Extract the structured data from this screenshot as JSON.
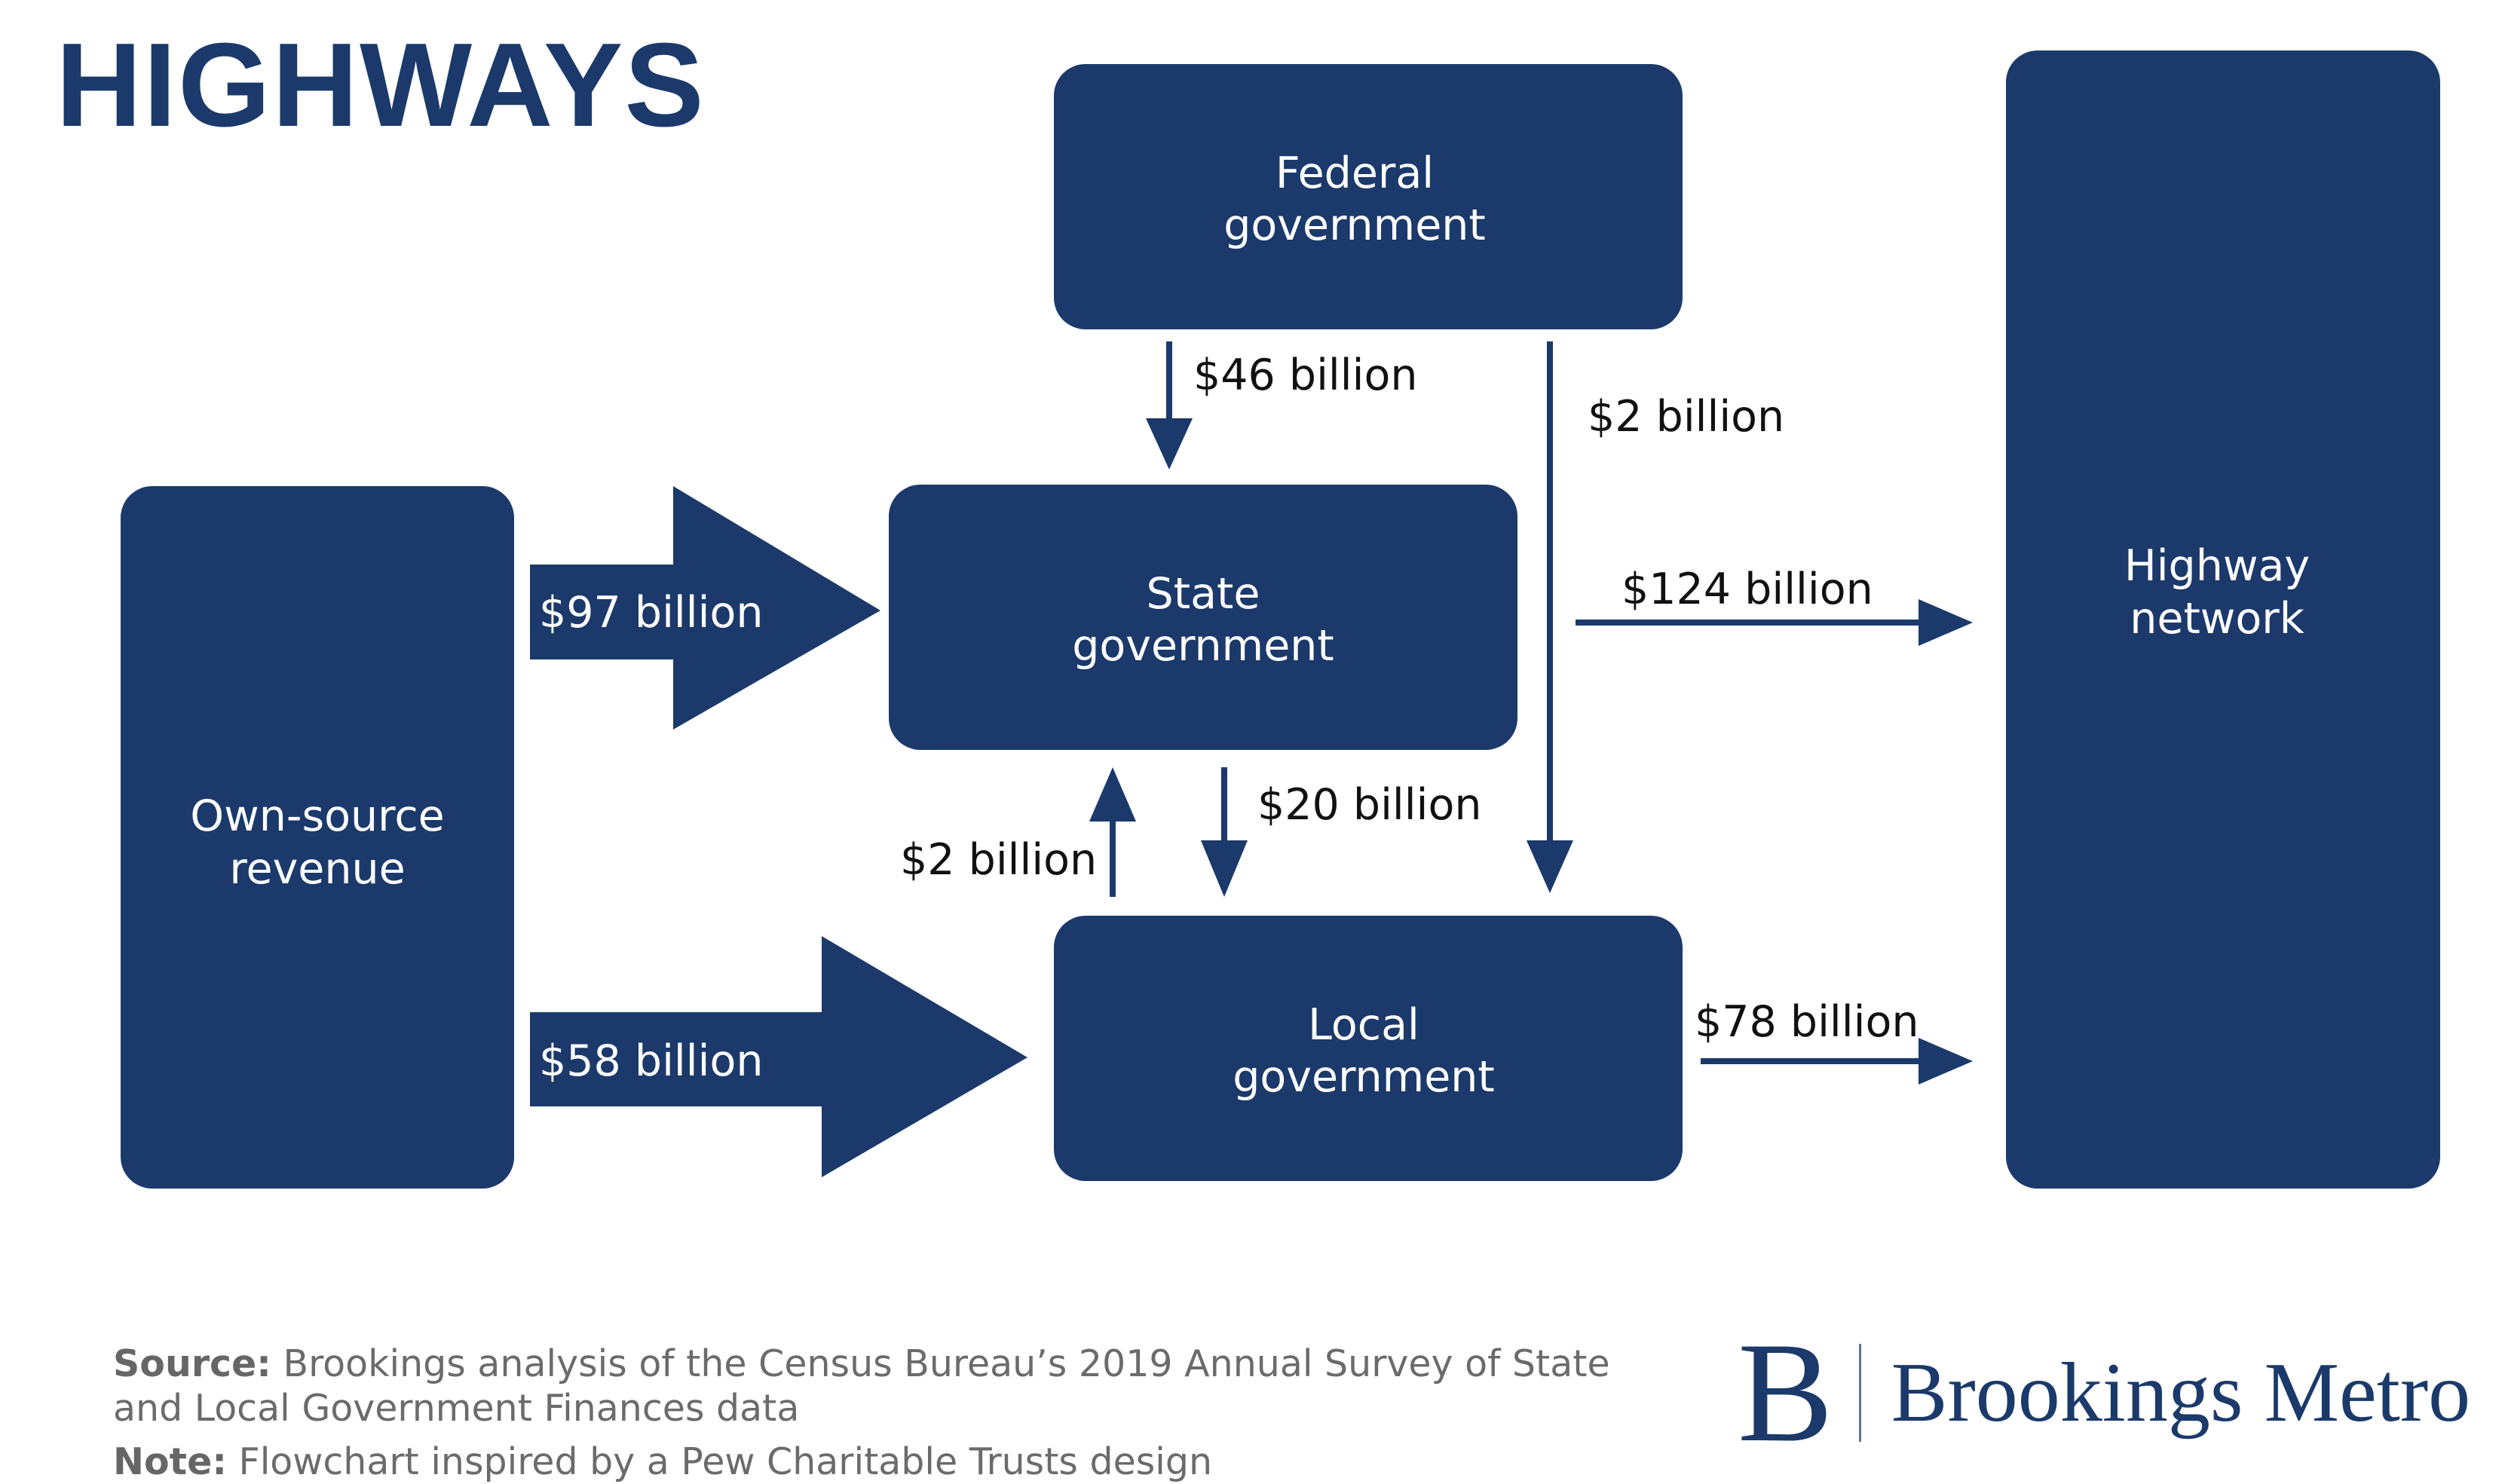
{
  "title": "HIGHWAYS",
  "colors": {
    "navy": "#1b3a6b",
    "label_dark": "#111111",
    "footnote_gray": "#6b6b6b"
  },
  "nodes": {
    "own_source": {
      "line1": "Own-source",
      "line2": "revenue"
    },
    "federal": {
      "line1": "Federal",
      "line2": "government"
    },
    "state": {
      "line1": "State",
      "line2": "government"
    },
    "local": {
      "line1": "Local",
      "line2": "government"
    },
    "highway": {
      "line1": "Highway",
      "line2": "network"
    }
  },
  "flows": {
    "own_to_state": "$97 billion",
    "own_to_local": "$58 billion",
    "federal_to_state": "$46 billion",
    "federal_to_local": "$2 billion",
    "state_to_highway": "$124 billion",
    "state_to_local": "$20 billion",
    "local_to_state": "$2 billion",
    "local_to_highway": "$78 billion"
  },
  "footer": {
    "source_label": "Source:",
    "source_text": " Brookings analysis of the Census Bureau’s 2019 Annual Survey of State and Local Government Finances data",
    "note_label": "Note:",
    "note_text": " Flowchart inspired by a Pew Charitable Trusts design"
  },
  "logo": {
    "mark": "B",
    "name": "Brookings Metro"
  }
}
